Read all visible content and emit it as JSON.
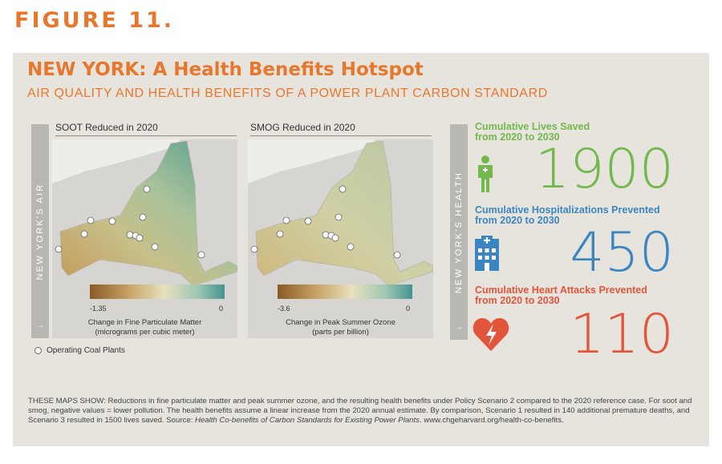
{
  "figure_label": "FIGURE 11.",
  "title": "NEW YORK: A Health Benefits Hotspot",
  "subtitle": "AIR QUALITY AND HEALTH BENEFITS OF A POWER PLANT CARBON STANDARD",
  "air_sidebar": {
    "label": "NEW YORK'S AIR",
    "arrow": "→"
  },
  "health_sidebar": {
    "label": "NEW YORK'S HEALTH",
    "arrow": "→"
  },
  "soot_map": {
    "title": "SOOT Reduced in 2020",
    "scale_min": "-1.35",
    "scale_max": "0",
    "caption_line1": "Change in Fine Particulate Matter",
    "caption_line2": "(micrograms per cubic meter)"
  },
  "smog_map": {
    "title": "SMOG Reduced in 2020",
    "scale_min": "-3.6",
    "scale_max": "0",
    "caption_line1": "Change in Peak Summer Ozone",
    "caption_line2": "(parts per billion)"
  },
  "legend": {
    "label": "Operating Coal Plants"
  },
  "stats": [
    {
      "line1": "Cumulative Lives Saved",
      "line2": "from 2020 to 2030",
      "value": "1900",
      "color": "#72b84c",
      "icon": "person-icon"
    },
    {
      "line1": "Cumulative Hospitalizations Prevented",
      "line2": "from 2020 to 2030",
      "value": "450",
      "color": "#3b86c2",
      "icon": "hospital-icon"
    },
    {
      "line1": "Cumulative Heart Attacks Prevented",
      "line2": "from 2020 to 2030",
      "value": "110",
      "color": "#e2553b",
      "icon": "heart-icon"
    }
  ],
  "notes": {
    "text": "THESE MAPS SHOW: Reductions in fine particulate matter and peak summer ozone, and the resulting health benefits under Policy Scenario 2 compared to the 2020 reference case. For soot and smog, negative values = lower pollution. The health benefits assume a linear increase from the 2020 annual estimate. By comparison, Scenario 1 resulted in 140 additional premature deaths, and Scenario 3 resulted in 1500 lives saved. Source: ",
    "source_title": "Health Co-benefits of Carbon Standards for Existing Power Plants",
    "source_url": ". www.chgeharvard.org/health-co-benefits."
  },
  "colors": {
    "accent": "#e8772e",
    "panel": "#e6e4dd",
    "soot_low": "#9a6b2e",
    "soot_high": "#4e9a95"
  }
}
